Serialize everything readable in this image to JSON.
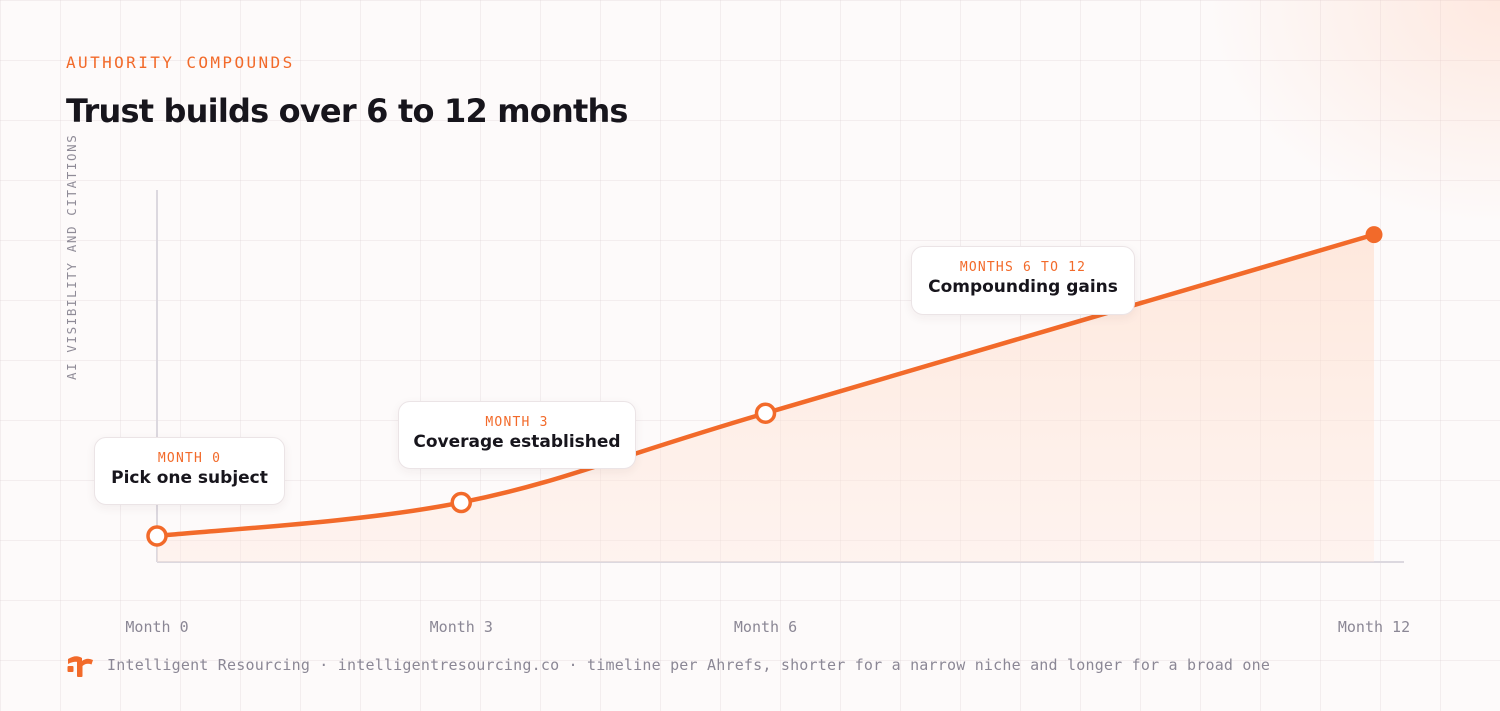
{
  "header": {
    "eyebrow": "AUTHORITY COMPOUNDS",
    "title": "Trust builds over 6 to 12 months"
  },
  "footer": {
    "logo_icon": "intelligent-resourcing-logo",
    "text": "Intelligent Resourcing · intelligentresourcing.co · timeline per Ahrefs, shorter for a narrow niche and longer for a broad one"
  },
  "colors": {
    "accent": "#f26a2a",
    "text": "#17151c",
    "muted": "#8b8795"
  },
  "chart_data": {
    "type": "area",
    "title": "Trust builds over 6 to 12 months",
    "ylabel": "AI VISIBILITY AND CITATIONS",
    "xlabel": "",
    "x_ticks": [
      {
        "label": "Month 0",
        "value": 0
      },
      {
        "label": "Month 3",
        "value": 3
      },
      {
        "label": "Month 6",
        "value": 6
      },
      {
        "label": "Month 12",
        "value": 12
      }
    ],
    "xlim": [
      0,
      12
    ],
    "ylim": [
      0,
      100
    ],
    "y_ticks_shown": false,
    "grid": true,
    "series": [
      {
        "x": [
          0,
          3,
          6,
          12
        ],
        "y": [
          7,
          16,
          40,
          88
        ]
      }
    ],
    "annotations": [
      {
        "x": 0,
        "eyebrow": "MONTH 0",
        "label": "Pick one subject"
      },
      {
        "x": 3,
        "eyebrow": "MONTH 3",
        "label": "Coverage established"
      },
      {
        "x": 6,
        "eyebrow": "MONTHS 6 TO 12",
        "label": "Compounding gains"
      }
    ]
  }
}
